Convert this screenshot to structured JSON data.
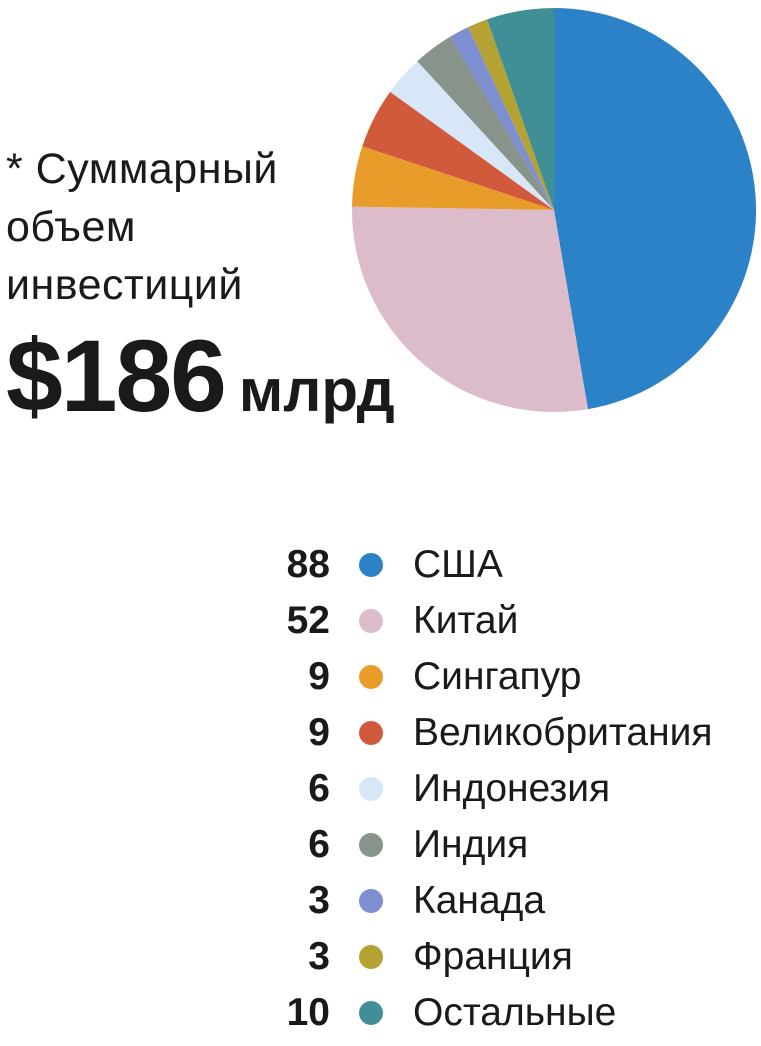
{
  "annotation": {
    "line1": "* Суммарный",
    "line2": "объем",
    "line3": "инвестиций"
  },
  "total": {
    "amount": "$186",
    "unit": "млрд"
  },
  "chart_data": {
    "type": "pie",
    "total": 186,
    "categories": [
      "США",
      "Китай",
      "Сингапур",
      "Великобритания",
      "Индонезия",
      "Индия",
      "Канада",
      "Франция",
      "Остальные"
    ],
    "values": [
      88,
      52,
      9,
      9,
      6,
      6,
      3,
      3,
      10
    ],
    "colors": [
      "#2b82c6",
      "#dcbccb",
      "#e89d2b",
      "#d15a3c",
      "#d7e7f7",
      "#87938b",
      "#7d8fd1",
      "#b4a233",
      "#418f96"
    ],
    "start_angle_deg": 0,
    "direction": "clockwise",
    "legend_position": "bottom",
    "text_color": "#1a1a1a"
  }
}
